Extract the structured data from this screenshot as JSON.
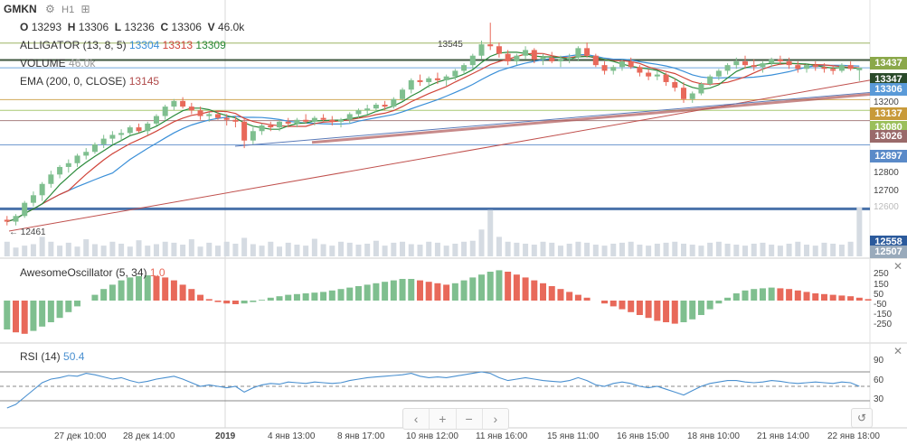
{
  "header": {
    "symbol": "GMKN",
    "interval": "H1",
    "open_label": "O",
    "open": "13293",
    "high_label": "H",
    "high": "13306",
    "low_label": "L",
    "low": "13236",
    "close_label": "C",
    "close": "13306",
    "vol_label": "V",
    "vol": "46.0k"
  },
  "indicators": {
    "alligator": {
      "label": "ALLIGATOR (13, 8, 5)",
      "jaw": "13304",
      "teeth": "13313",
      "lips": "13309"
    },
    "volume": {
      "label": "VOLUME",
      "value": "46.0k"
    },
    "ema": {
      "label": "EMA (200, 0, CLOSE)",
      "value": "13145"
    },
    "ao": {
      "label": "AwesomeOscillator (5, 34)",
      "value": "1.0"
    },
    "rsi": {
      "label": "RSI (14)",
      "value": "50.4"
    }
  },
  "colors": {
    "up": "#7fbf8f",
    "down": "#e8695a",
    "jaw": "#3a8fd8",
    "teeth": "#d0453a",
    "lips": "#2a8a3a",
    "ema": "#2b5a9c",
    "rsi": "#4a90d0"
  },
  "price_badges": [
    {
      "value": "13437",
      "color": "#8ba84a"
    },
    {
      "value": "13347",
      "color": "#2a4a2a"
    },
    {
      "value": "13306",
      "color": "#5a9ad8"
    },
    {
      "value": "13137",
      "color": "#c89a3a"
    },
    {
      "value": "13080",
      "color": "#9bbf5a"
    },
    {
      "value": "13026",
      "color": "#9a6a6a"
    },
    {
      "value": "12897",
      "color": "#5a8ac8"
    },
    {
      "value": "12558",
      "color": "#2b5a9c"
    },
    {
      "value": "12507",
      "color": "#99aabb"
    }
  ],
  "price_axis": [
    "13200",
    "12800",
    "12700",
    "12600"
  ],
  "ao_axis": [
    "250",
    "150",
    "50",
    "-50",
    "-150",
    "-250"
  ],
  "rsi_axis": [
    "90",
    "60",
    "30"
  ],
  "annotations": {
    "high_marker": "13545",
    "low_marker": "← 12461"
  },
  "time_axis": [
    "27 дек 10:00",
    "28 дек 14:00",
    "2019",
    "4 янв 13:00",
    "8 янв 17:00",
    "10 янв 12:00",
    "11 янв 16:00",
    "15 янв 11:00",
    "16 янв 15:00",
    "18 янв 10:00",
    "21 янв 14:00",
    "22 янв 18:00"
  ],
  "nav": {
    "left": "‹",
    "zoom_in": "+",
    "zoom_out": "−",
    "right": "›",
    "reset": "↺"
  },
  "chart_data": {
    "type": "line",
    "ohlc": [
      [
        12500,
        12520,
        12470,
        12490
      ],
      [
        12490,
        12530,
        12470,
        12520
      ],
      [
        12520,
        12600,
        12510,
        12590
      ],
      [
        12590,
        12650,
        12570,
        12630
      ],
      [
        12630,
        12700,
        12600,
        12690
      ],
      [
        12690,
        12760,
        12670,
        12740
      ],
      [
        12740,
        12790,
        12720,
        12780
      ],
      [
        12780,
        12820,
        12750,
        12800
      ],
      [
        12800,
        12850,
        12780,
        12840
      ],
      [
        12840,
        12880,
        12820,
        12860
      ],
      [
        12860,
        12910,
        12850,
        12900
      ],
      [
        12900,
        12950,
        12880,
        12930
      ],
      [
        12930,
        12970,
        12900,
        12950
      ],
      [
        12950,
        12980,
        12920,
        12960
      ],
      [
        12960,
        13000,
        12950,
        12990
      ],
      [
        12990,
        13010,
        12960,
        12970
      ],
      [
        12970,
        13020,
        12950,
        13010
      ],
      [
        13010,
        13060,
        13000,
        13050
      ],
      [
        13050,
        13110,
        13030,
        13100
      ],
      [
        13100,
        13140,
        13080,
        13130
      ],
      [
        13130,
        13150,
        13090,
        13100
      ],
      [
        13100,
        13120,
        13060,
        13080
      ],
      [
        13080,
        13100,
        13030,
        13050
      ],
      [
        13050,
        13070,
        13020,
        13060
      ],
      [
        13060,
        13080,
        13030,
        13040
      ],
      [
        13040,
        13060,
        13000,
        13030
      ],
      [
        13030,
        13050,
        12990,
        13020
      ],
      [
        13020,
        13040,
        12880,
        12920
      ],
      [
        12920,
        12990,
        12900,
        12970
      ],
      [
        12970,
        13010,
        12950,
        13000
      ],
      [
        13000,
        13020,
        12970,
        12990
      ],
      [
        12990,
        13030,
        12970,
        13020
      ],
      [
        13020,
        13040,
        12990,
        13010
      ],
      [
        13010,
        13040,
        12990,
        13030
      ],
      [
        13030,
        13060,
        13010,
        13020
      ],
      [
        13020,
        13050,
        13000,
        13040
      ],
      [
        13040,
        13060,
        13020,
        13030
      ],
      [
        13030,
        13050,
        13000,
        13020
      ],
      [
        13020,
        13040,
        12990,
        13030
      ],
      [
        13030,
        13070,
        13010,
        13060
      ],
      [
        13060,
        13090,
        13040,
        13080
      ],
      [
        13080,
        13110,
        13060,
        13090
      ],
      [
        13090,
        13120,
        13070,
        13110
      ],
      [
        13110,
        13130,
        13080,
        13100
      ],
      [
        13100,
        13150,
        13090,
        13140
      ],
      [
        13140,
        13200,
        13130,
        13190
      ],
      [
        13190,
        13250,
        13170,
        13240
      ],
      [
        13240,
        13270,
        13210,
        13230
      ],
      [
        13230,
        13260,
        13200,
        13250
      ],
      [
        13250,
        13280,
        13220,
        13240
      ],
      [
        13240,
        13270,
        13210,
        13260
      ],
      [
        13260,
        13300,
        13240,
        13290
      ],
      [
        13290,
        13330,
        13270,
        13320
      ],
      [
        13320,
        13380,
        13300,
        13370
      ],
      [
        13370,
        13450,
        13350,
        13430
      ],
      [
        13430,
        13545,
        13400,
        13420
      ],
      [
        13420,
        13440,
        13360,
        13380
      ],
      [
        13380,
        13400,
        13320,
        13340
      ],
      [
        13340,
        13380,
        13320,
        13370
      ],
      [
        13370,
        13420,
        13350,
        13400
      ],
      [
        13400,
        13410,
        13330,
        13350
      ],
      [
        13350,
        13380,
        13320,
        13360
      ],
      [
        13360,
        13390,
        13330,
        13340
      ],
      [
        13340,
        13370,
        13310,
        13350
      ],
      [
        13350,
        13380,
        13330,
        13360
      ],
      [
        13360,
        13420,
        13340,
        13410
      ],
      [
        13410,
        13440,
        13360,
        13370
      ],
      [
        13370,
        13380,
        13310,
        13320
      ],
      [
        13320,
        13340,
        13270,
        13290
      ],
      [
        13290,
        13320,
        13270,
        13310
      ],
      [
        13310,
        13350,
        13290,
        13340
      ],
      [
        13340,
        13360,
        13300,
        13310
      ],
      [
        13310,
        13320,
        13260,
        13280
      ],
      [
        13280,
        13300,
        13240,
        13260
      ],
      [
        13260,
        13290,
        13240,
        13270
      ],
      [
        13270,
        13280,
        13210,
        13230
      ],
      [
        13230,
        13250,
        13180,
        13200
      ],
      [
        13200,
        13230,
        13120,
        13140
      ],
      [
        13140,
        13180,
        13120,
        13170
      ],
      [
        13170,
        13230,
        13160,
        13220
      ],
      [
        13220,
        13270,
        13210,
        13260
      ],
      [
        13260,
        13300,
        13240,
        13290
      ],
      [
        13290,
        13330,
        13270,
        13320
      ],
      [
        13320,
        13360,
        13300,
        13340
      ],
      [
        13340,
        13370,
        13300,
        13320
      ],
      [
        13320,
        13350,
        13290,
        13310
      ],
      [
        13310,
        13340,
        13280,
        13330
      ],
      [
        13330,
        13360,
        13310,
        13350
      ],
      [
        13350,
        13370,
        13320,
        13340
      ],
      [
        13340,
        13360,
        13300,
        13320
      ],
      [
        13320,
        13340,
        13280,
        13300
      ],
      [
        13300,
        13330,
        13280,
        13320
      ],
      [
        13320,
        13340,
        13290,
        13310
      ],
      [
        13310,
        13330,
        13280,
        13300
      ],
      [
        13300,
        13320,
        13270,
        13290
      ],
      [
        13290,
        13330,
        13280,
        13320
      ],
      [
        13320,
        13340,
        13290,
        13300
      ],
      [
        13293,
        13306,
        13236,
        13306
      ]
    ],
    "volume": [
      30,
      18,
      22,
      25,
      40,
      30,
      22,
      28,
      20,
      35,
      25,
      22,
      30,
      26,
      20,
      33,
      22,
      25,
      30,
      28,
      24,
      35,
      20,
      28,
      22,
      30,
      26,
      38,
      25,
      22,
      30,
      20,
      28,
      24,
      22,
      36,
      25,
      22,
      30,
      28,
      24,
      26,
      32,
      22,
      28,
      30,
      25,
      24,
      30,
      28,
      22,
      26,
      30,
      32,
      55,
      95,
      40,
      30,
      28,
      26,
      24,
      30,
      28,
      22,
      26,
      30,
      28,
      24,
      22,
      26,
      28,
      30,
      24,
      22,
      26,
      28,
      30,
      26,
      24,
      22,
      28,
      30,
      26,
      24,
      22,
      26,
      28,
      24,
      22,
      26,
      30,
      24,
      22,
      28,
      26,
      24,
      30,
      100
    ],
    "ao": [
      -200,
      -220,
      -230,
      -210,
      -180,
      -150,
      -120,
      -80,
      -40,
      0,
      40,
      80,
      110,
      140,
      160,
      170,
      175,
      170,
      160,
      140,
      110,
      80,
      40,
      10,
      -10,
      -20,
      -25,
      -20,
      -10,
      5,
      20,
      30,
      40,
      45,
      50,
      55,
      60,
      70,
      80,
      90,
      100,
      110,
      120,
      130,
      140,
      150,
      150,
      140,
      130,
      120,
      110,
      120,
      140,
      160,
      180,
      200,
      210,
      200,
      180,
      160,
      140,
      120,
      100,
      80,
      60,
      40,
      20,
      0,
      -20,
      -40,
      -60,
      -80,
      -100,
      -120,
      -140,
      -150,
      -160,
      -150,
      -130,
      -100,
      -60,
      -20,
      20,
      50,
      70,
      80,
      85,
      90,
      85,
      80,
      70,
      60,
      50,
      45,
      40,
      35,
      30,
      20,
      10
    ],
    "rsi": [
      20,
      25,
      35,
      45,
      55,
      60,
      62,
      65,
      64,
      68,
      66,
      63,
      60,
      62,
      58,
      55,
      57,
      60,
      62,
      64,
      60,
      55,
      50,
      52,
      50,
      48,
      50,
      42,
      48,
      52,
      54,
      53,
      56,
      55,
      54,
      56,
      55,
      54,
      55,
      58,
      60,
      62,
      63,
      64,
      65,
      66,
      68,
      64,
      62,
      63,
      62,
      64,
      66,
      68,
      70,
      68,
      62,
      58,
      60,
      62,
      60,
      58,
      57,
      56,
      58,
      62,
      58,
      52,
      50,
      54,
      56,
      54,
      50,
      48,
      50,
      46,
      42,
      38,
      44,
      50,
      54,
      56,
      58,
      58,
      56,
      55,
      56,
      58,
      57,
      55,
      54,
      55,
      56,
      55,
      54,
      56,
      55,
      50
    ]
  }
}
